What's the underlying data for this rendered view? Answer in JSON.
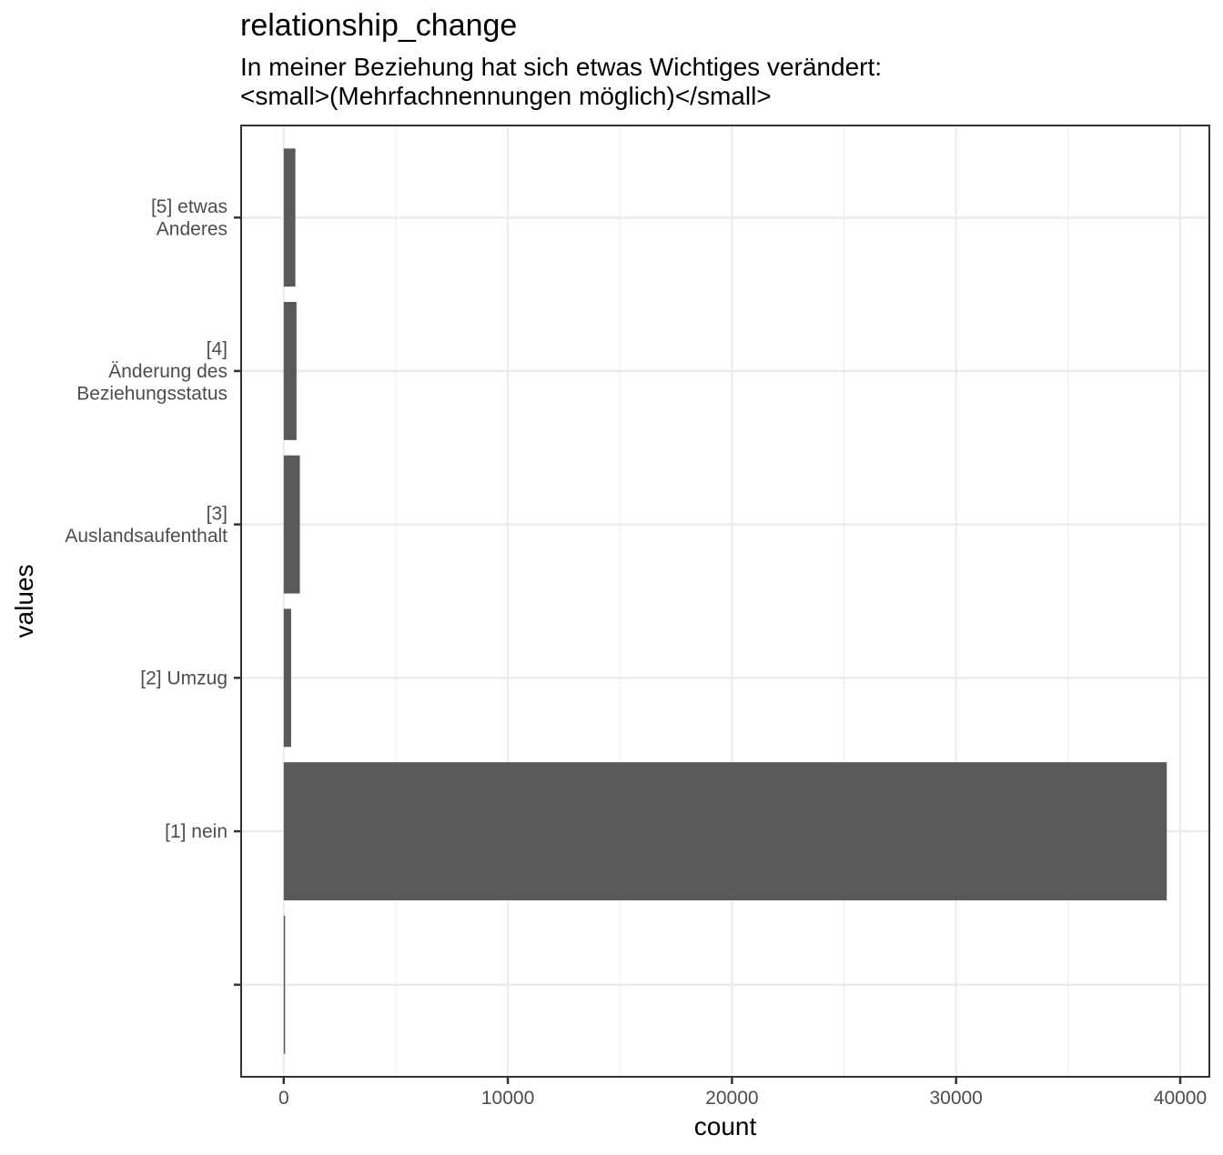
{
  "chart_data": {
    "type": "bar",
    "orientation": "horizontal",
    "title": "relationship_change",
    "subtitle_lines": [
      "In meiner Beziehung hat sich etwas Wichtiges verändert:",
      "<small>(Mehrfachnennungen möglich)</small>"
    ],
    "xlabel": "count",
    "ylabel": "values",
    "x_ticks": [
      0,
      10000,
      20000,
      30000,
      40000
    ],
    "x_minor_ticks": [
      5000,
      15000,
      25000,
      35000
    ],
    "xlim": [
      -1900,
      41300
    ],
    "categories": [
      {
        "label_lines": [
          ""
        ],
        "value": 60
      },
      {
        "label_lines": [
          "[1] nein"
        ],
        "value": 39400
      },
      {
        "label_lines": [
          "[2] Umzug"
        ],
        "value": 330
      },
      {
        "label_lines": [
          "[3]",
          "Auslandsaufenthalt"
        ],
        "value": 720
      },
      {
        "label_lines": [
          "[4]",
          "Änderung des",
          "Beziehungsstatus"
        ],
        "value": 570
      },
      {
        "label_lines": [
          "[5] etwas",
          "Anderes"
        ],
        "value": 520
      }
    ],
    "bar_color": "#595959",
    "grid": true,
    "grid_color": "#ebebeb",
    "panel_border_color": "#333333"
  }
}
